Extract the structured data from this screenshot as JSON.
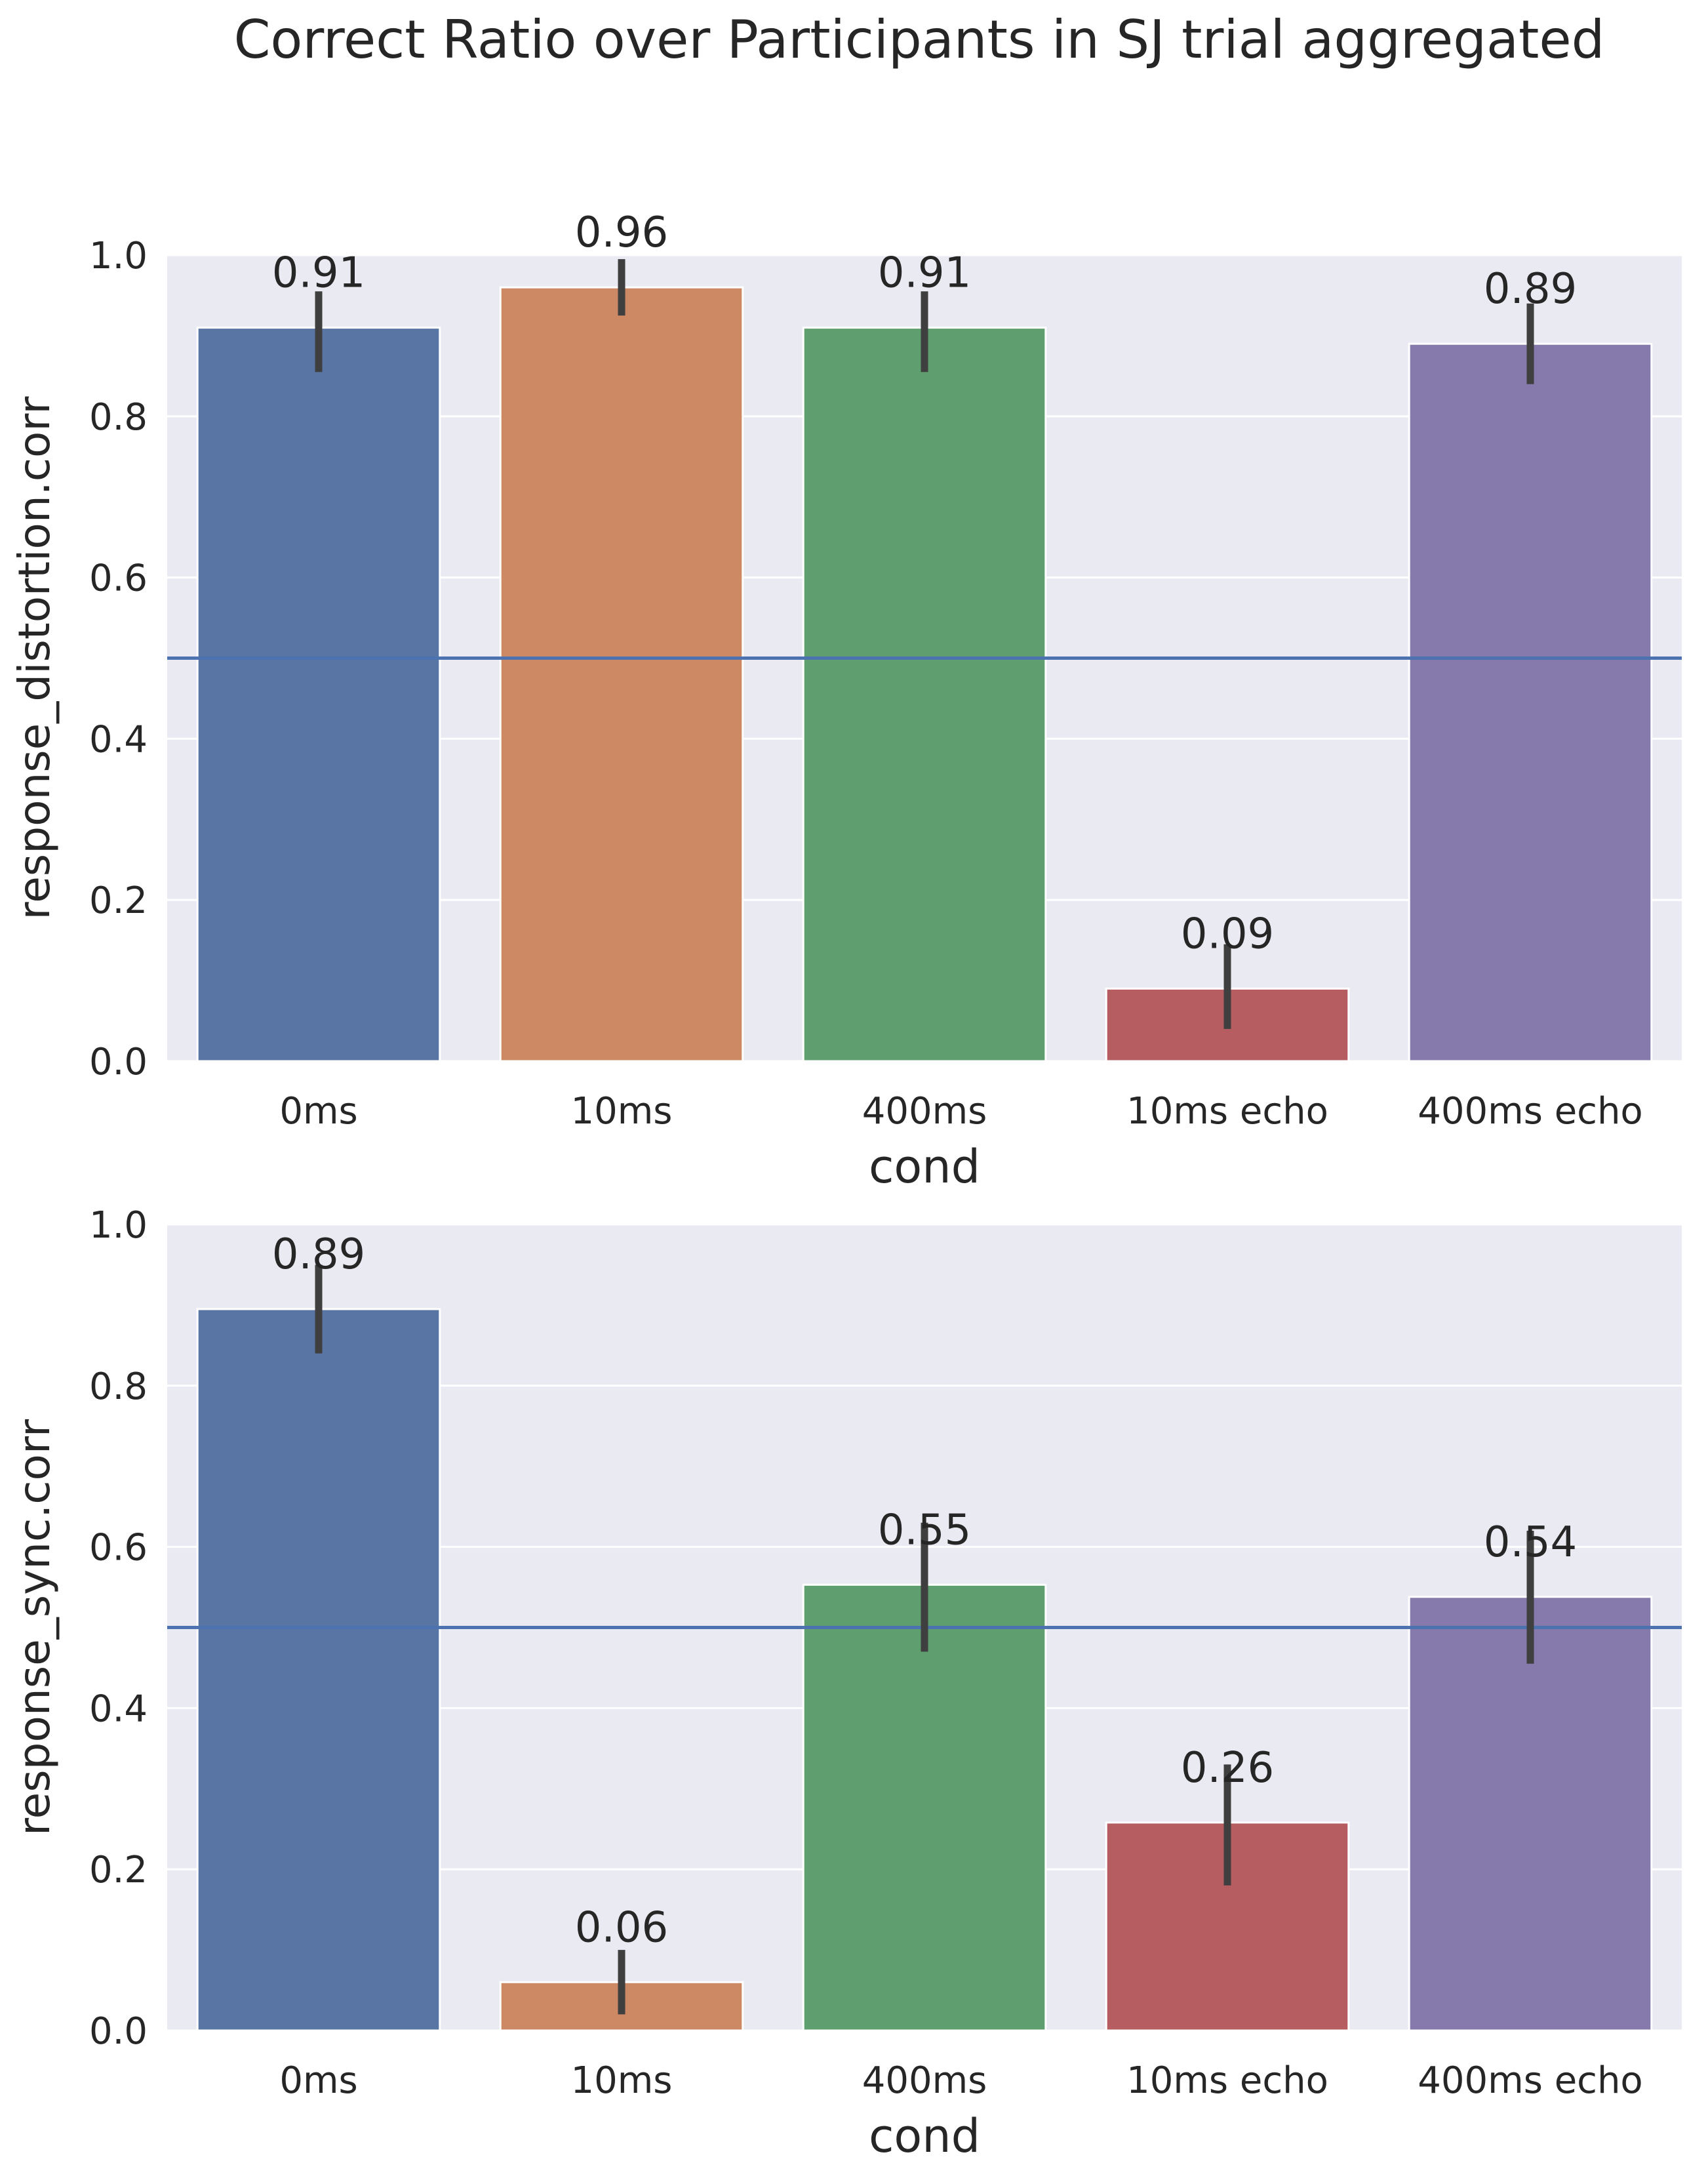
{
  "figure": {
    "suptitle": "Correct Ratio over Participants in SJ trial aggregated"
  },
  "chart_data": [
    {
      "type": "bar",
      "categories": [
        "0ms",
        "10ms",
        "400ms",
        "10ms echo",
        "400ms echo"
      ],
      "values": [
        0.91,
        0.96,
        0.91,
        0.09,
        0.89
      ],
      "value_labels": [
        "0.91",
        "0.96",
        "0.91",
        "0.09",
        "0.89"
      ],
      "error_bars": [
        [
          0.855,
          0.955
        ],
        [
          0.925,
          0.995
        ],
        [
          0.855,
          0.955
        ],
        [
          0.04,
          0.145
        ],
        [
          0.84,
          0.94
        ]
      ],
      "xlabel": "cond",
      "ylabel": "response_distortion.corr",
      "ylim": [
        0,
        1.0
      ],
      "yticks": [
        "0.0",
        "0.2",
        "0.4",
        "0.6",
        "0.8",
        "1.0"
      ],
      "reference_line": 0.5,
      "grid": true,
      "colors": [
        "#5875a4",
        "#cc8963",
        "#5f9e6e",
        "#b55d60",
        "#857aab"
      ],
      "background": "#eaeaf2",
      "reference_line_color": "#4c72b0",
      "error_bar_color": "#3f3f3f"
    },
    {
      "type": "bar",
      "categories": [
        "0ms",
        "10ms",
        "400ms",
        "10ms echo",
        "400ms echo"
      ],
      "values": [
        0.895,
        0.06,
        0.553,
        0.258,
        0.538
      ],
      "value_labels": [
        "0.89",
        "0.06",
        "0.55",
        "0.26",
        "0.54"
      ],
      "error_bars": [
        [
          0.84,
          0.95
        ],
        [
          0.02,
          0.1
        ],
        [
          0.47,
          0.63
        ],
        [
          0.18,
          0.33
        ],
        [
          0.455,
          0.62
        ]
      ],
      "xlabel": "cond",
      "ylabel": "response_sync.corr",
      "ylim": [
        0,
        1.0
      ],
      "yticks": [
        "0.0",
        "0.2",
        "0.4",
        "0.6",
        "0.8",
        "1.0"
      ],
      "reference_line": 0.5,
      "grid": true,
      "colors": [
        "#5875a4",
        "#cc8963",
        "#5f9e6e",
        "#b55d60",
        "#857aab"
      ],
      "background": "#eaeaf2",
      "reference_line_color": "#4c72b0",
      "error_bar_color": "#3f3f3f"
    }
  ]
}
